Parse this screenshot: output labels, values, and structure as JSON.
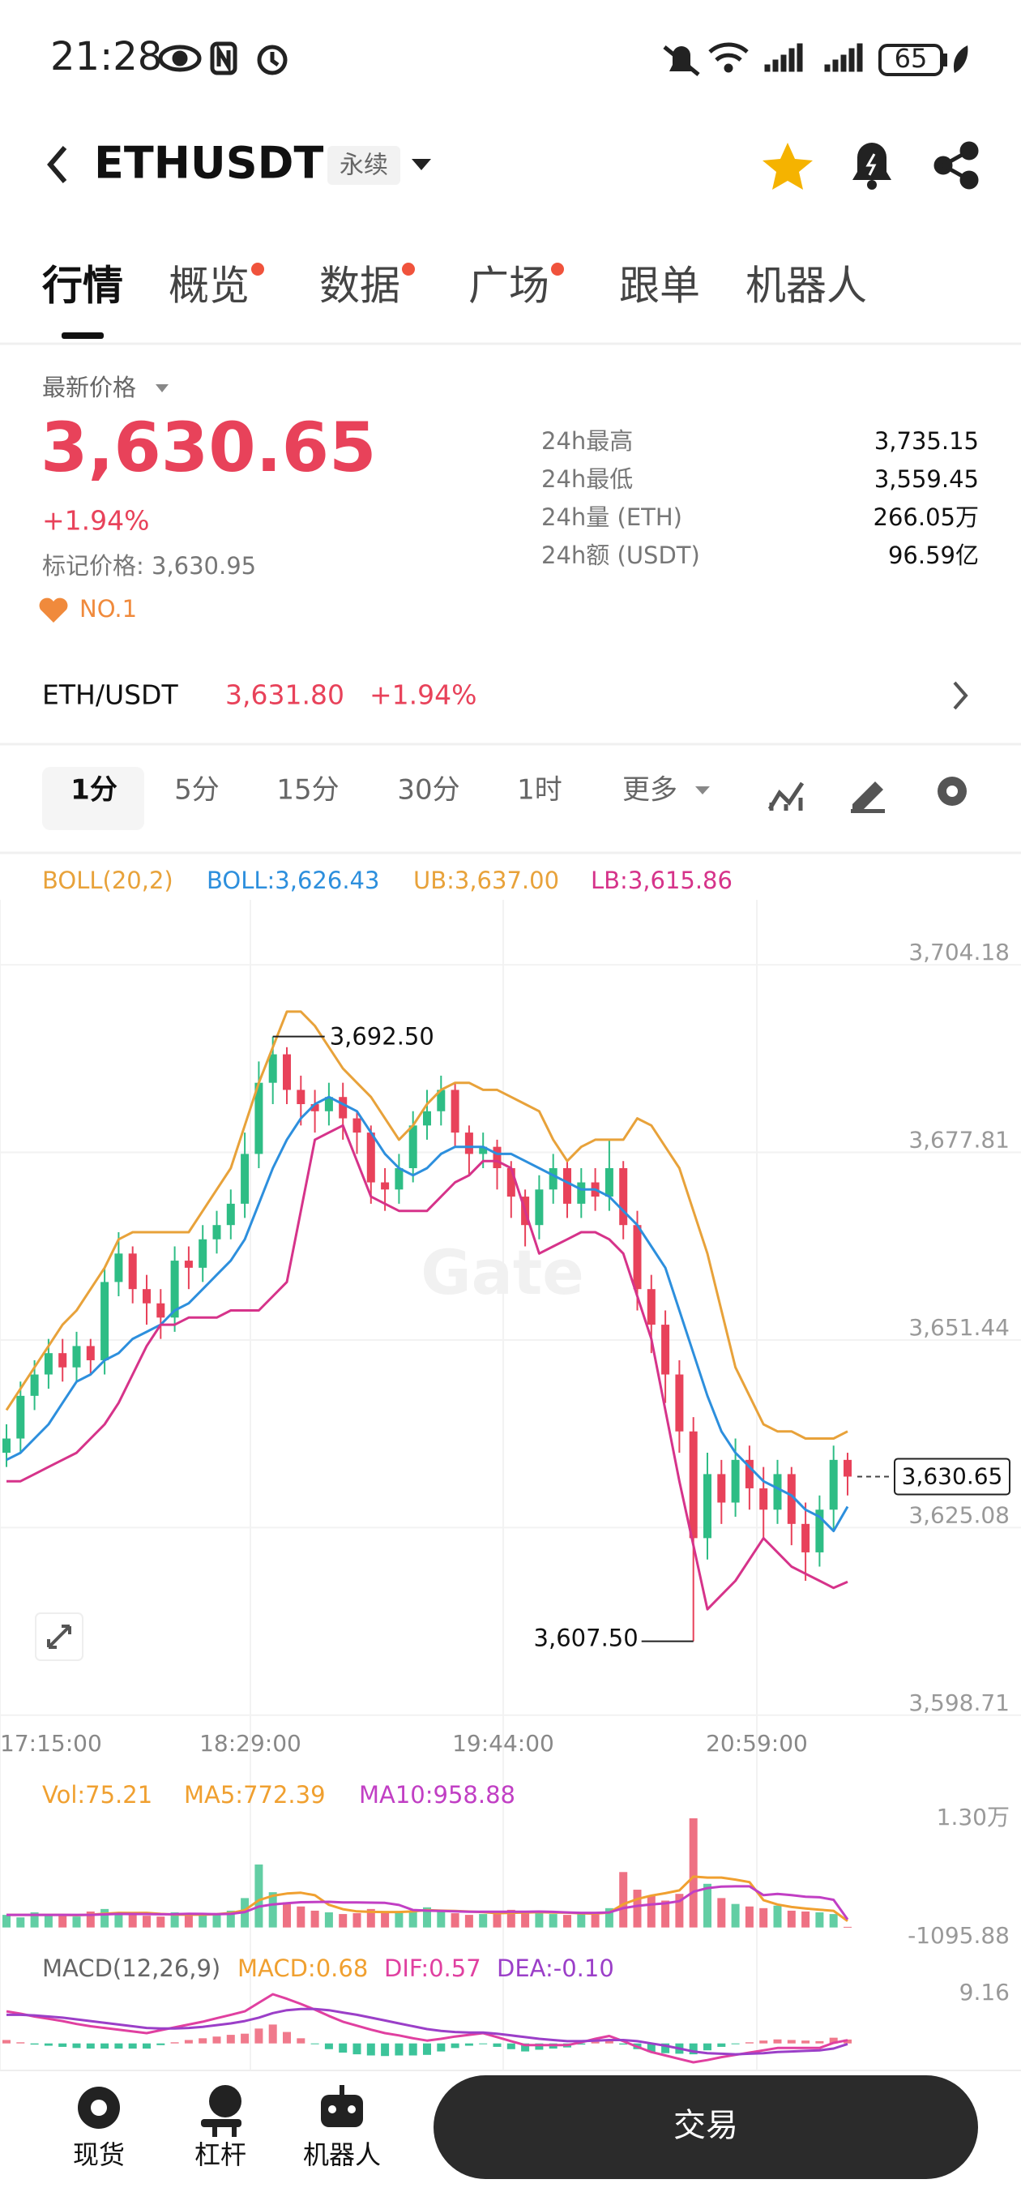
{
  "status_bar": {
    "time": "21:28",
    "battery": "65"
  },
  "header": {
    "symbol": "ETHUSDT",
    "tag": "永续"
  },
  "tabs": {
    "items": [
      {
        "label": "行情",
        "dot": false
      },
      {
        "label": "概览",
        "dot": true
      },
      {
        "label": "数据",
        "dot": true
      },
      {
        "label": "广场",
        "dot": true
      },
      {
        "label": "跟单",
        "dot": false
      },
      {
        "label": "机器人",
        "dot": false
      }
    ],
    "selected": 0
  },
  "price": {
    "label": "最新价格",
    "last": "3,630.65",
    "change": "+1.94%",
    "mark": "标记价格: 3,630.95",
    "rank": "NO.1",
    "stats": [
      {
        "label": "24h最高",
        "value": "3,735.15"
      },
      {
        "label": "24h最低",
        "value": "3,559.45"
      },
      {
        "label": "24h量 (ETH)",
        "value": "266.05万"
      },
      {
        "label": "24h额 (USDT)",
        "value": "96.59亿"
      }
    ]
  },
  "ticker": {
    "pair": "ETH/USDT",
    "price": "3,631.80",
    "change": "+1.94%"
  },
  "intervals": {
    "items": [
      "1分",
      "5分",
      "15分",
      "30分",
      "1时",
      "更多"
    ],
    "selected": 0
  },
  "chart_data": [
    {
      "type": "candlestick",
      "legend_title": "BOLL(20,2)",
      "up_color": "#2ebd85",
      "down_color": "#e8425a",
      "open": [
        3634,
        3636,
        3642,
        3645,
        3648,
        3646,
        3649,
        3647,
        3658,
        3662,
        3657,
        3655,
        3653,
        3661,
        3660,
        3664,
        3666,
        3669,
        3676,
        3686,
        3690,
        3685,
        3683,
        3682,
        3684,
        3681,
        3679,
        3672,
        3671,
        3674,
        3680,
        3682,
        3685,
        3679,
        3676,
        3677,
        3674,
        3670,
        3666,
        3671,
        3674,
        3669,
        3672,
        3670,
        3674,
        3666,
        3657,
        3652,
        3645,
        3637,
        3622,
        3631,
        3627,
        3633,
        3629,
        3626,
        3631,
        3624,
        3620,
        3626,
        3633
      ],
      "high": [
        3638,
        3644,
        3647,
        3650,
        3650,
        3651,
        3650,
        3660,
        3665,
        3663,
        3659,
        3657,
        3663,
        3663,
        3666,
        3668,
        3671,
        3679,
        3689,
        3692.5,
        3691,
        3687,
        3685,
        3686,
        3686,
        3682,
        3680,
        3674,
        3676,
        3682,
        3685,
        3687,
        3686,
        3680,
        3679,
        3678,
        3675,
        3671,
        3673,
        3676,
        3675,
        3674,
        3674,
        3678,
        3675,
        3668,
        3659,
        3654,
        3647,
        3639,
        3634,
        3633,
        3636,
        3635,
        3632,
        3633,
        3632,
        3627,
        3628,
        3635,
        3634
      ],
      "low": [
        3632,
        3634,
        3640,
        3643,
        3644,
        3644,
        3645,
        3645,
        3656,
        3655,
        3652,
        3650,
        3651,
        3657,
        3658,
        3662,
        3664,
        3667,
        3674,
        3683,
        3683,
        3680,
        3679,
        3680,
        3678,
        3676,
        3669,
        3668,
        3669,
        3672,
        3678,
        3680,
        3677,
        3673,
        3674,
        3671,
        3667,
        3663,
        3664,
        3669,
        3667,
        3667,
        3668,
        3668,
        3664,
        3654,
        3648,
        3641,
        3634,
        3607.5,
        3619,
        3624,
        3625,
        3626,
        3622,
        3624,
        3621,
        3616,
        3618,
        3623,
        3628
      ],
      "close": [
        3636,
        3642,
        3645,
        3648,
        3646,
        3649,
        3647,
        3658,
        3662,
        3657,
        3655,
        3653,
        3661,
        3660,
        3664,
        3666,
        3669,
        3676,
        3686,
        3690,
        3685,
        3683,
        3682,
        3684,
        3681,
        3679,
        3672,
        3671,
        3674,
        3680,
        3682,
        3685,
        3679,
        3676,
        3677,
        3674,
        3670,
        3666,
        3671,
        3674,
        3669,
        3672,
        3670,
        3674,
        3666,
        3657,
        3652,
        3645,
        3637,
        3622,
        3631,
        3627,
        3633,
        3629,
        3626,
        3631,
        3624,
        3620,
        3626,
        3633,
        3630.65
      ],
      "series": [
        {
          "name": "BOLL:3,626.43",
          "color": "#2d8fdd",
          "values": [
            3633,
            3634,
            3636,
            3638,
            3641,
            3644,
            3645,
            3647,
            3648,
            3650,
            3651,
            3652,
            3654,
            3655,
            3657,
            3659,
            3661,
            3664,
            3669,
            3674,
            3678,
            3681,
            3683,
            3684,
            3683,
            3682,
            3679,
            3676,
            3674,
            3673,
            3674,
            3676,
            3677,
            3677,
            3677,
            3676,
            3676,
            3675,
            3674,
            3673,
            3672,
            3671,
            3671,
            3670,
            3668,
            3666,
            3663,
            3660,
            3654,
            3648,
            3642,
            3637,
            3634,
            3632,
            3630,
            3629,
            3628,
            3626,
            3625,
            3623,
            3626.43
          ]
        },
        {
          "name": "UB:3,637.00",
          "color": "#e8a23a",
          "values": [
            3640,
            3643,
            3646,
            3649,
            3652,
            3654,
            3657,
            3660,
            3664,
            3665,
            3665,
            3665,
            3665,
            3665,
            3668,
            3671,
            3674,
            3680,
            3686,
            3691,
            3696,
            3696,
            3694,
            3691,
            3688,
            3686,
            3684,
            3681,
            3678,
            3680,
            3683,
            3685,
            3686,
            3686,
            3685,
            3685,
            3684,
            3683,
            3682,
            3678,
            3675,
            3677,
            3678,
            3678,
            3678,
            3681,
            3680,
            3677,
            3674,
            3668,
            3662,
            3654,
            3646,
            3642,
            3638,
            3637,
            3637,
            3636,
            3636,
            3636,
            3637
          ]
        },
        {
          "name": "LB:3,615.86",
          "color": "#d6338a",
          "values": [
            3630,
            3630,
            3631,
            3632,
            3633,
            3634,
            3636,
            3638,
            3641,
            3645,
            3649,
            3652,
            3652,
            3653,
            3653,
            3653,
            3654,
            3654,
            3654,
            3656,
            3658,
            3668,
            3678,
            3679,
            3680,
            3675,
            3670,
            3669,
            3668,
            3668,
            3668,
            3670,
            3672,
            3673,
            3675,
            3675,
            3674,
            3668,
            3662,
            3663,
            3664,
            3665,
            3665,
            3664,
            3662,
            3656,
            3650,
            3640,
            3630,
            3621,
            3612,
            3614,
            3616,
            3619,
            3622,
            3620,
            3618,
            3617,
            3616,
            3615,
            3615.86
          ]
        }
      ],
      "ylim": [
        3596.18,
        3708.18
      ],
      "yticks": [
        {
          "value": 3704.18,
          "label": "3,704.18"
        },
        {
          "value": 3677.81,
          "label": "3,677.81"
        },
        {
          "value": 3651.44,
          "label": "3,651.44"
        },
        {
          "value": 3625.08,
          "label": "3,625.08"
        },
        {
          "value": 3598.71,
          "label": "3,598.71"
        }
      ],
      "grid": true,
      "xlabels": [
        "17:15:00",
        "18:29:00",
        "19:44:00",
        "20:59:00"
      ],
      "max_label": "3,692.50",
      "min_label": "3,607.50",
      "last_label": "3,630.65",
      "watermark": "Gate"
    },
    {
      "type": "bar",
      "name": "Vol:75.21",
      "name_color": "#f0a030",
      "values": [
        1500,
        1200,
        1800,
        1400,
        1600,
        1300,
        1900,
        2200,
        1700,
        1500,
        1400,
        1300,
        1800,
        1600,
        1500,
        1700,
        2000,
        3500,
        7500,
        4200,
        3000,
        2500,
        2000,
        1800,
        1600,
        1700,
        2200,
        1900,
        1800,
        2000,
        2400,
        1900,
        1700,
        1500,
        1600,
        1800,
        2100,
        1900,
        1700,
        1600,
        1500,
        1700,
        1800,
        2300,
        6600,
        4500,
        3800,
        3200,
        4000,
        13000,
        5200,
        3500,
        2800,
        2500,
        2300,
        2600,
        2000,
        1900,
        1800,
        1600,
        75.21
      ],
      "series": [
        {
          "name": "MA5:772.39",
          "color": "#f0a030",
          "values": [
            1500,
            1500,
            1500,
            1500,
            1500,
            1460,
            1520,
            1640,
            1740,
            1720,
            1740,
            1620,
            1540,
            1520,
            1520,
            1580,
            1720,
            2060,
            3240,
            3780,
            4040,
            4140,
            3840,
            2700,
            2180,
            1920,
            1860,
            1840,
            1840,
            1920,
            2060,
            2000,
            1960,
            1900,
            1820,
            1700,
            1740,
            1780,
            1820,
            1780,
            1760,
            1680,
            1660,
            1780,
            2780,
            3380,
            3800,
            4080,
            4420,
            6060,
            5940,
            5940,
            5700,
            5400,
            3260,
            2740,
            2440,
            2260,
            2120,
            1980,
            772.39
          ]
        },
        {
          "name": "MA10:958.88",
          "color": "#c13fc4",
          "values": [
            1500,
            1500,
            1500,
            1500,
            1500,
            1500,
            1500,
            1560,
            1620,
            1610,
            1600,
            1570,
            1580,
            1630,
            1620,
            1580,
            1620,
            1840,
            2490,
            2750,
            2890,
            3010,
            3030,
            3060,
            2980,
            2980,
            2960,
            2930,
            2680,
            2080,
            2000,
            1960,
            1930,
            1880,
            1880,
            1880,
            1870,
            1870,
            1900,
            1860,
            1790,
            1740,
            1740,
            1790,
            2300,
            2570,
            2740,
            2870,
            3130,
            4250,
            4690,
            4870,
            4900,
            4900,
            3850,
            4000,
            3850,
            3650,
            3600,
            3300,
            958.88
          ]
        }
      ],
      "ylim": [
        -1095.88,
        13000
      ],
      "yticks": [
        {
          "value": 13000,
          "label": "1.30万"
        },
        -1095.88
      ],
      "grid": false
    },
    {
      "type": "macd",
      "name": "MACD(12,26,9)",
      "histogram": {
        "name": "MACD:0.68",
        "color": "#f0a030",
        "positive_color": "#f07a8c",
        "negative_color": "#3cc49a",
        "values": [
          0.6,
          0.2,
          -0.2,
          -0.4,
          -0.6,
          -0.8,
          -0.9,
          -0.9,
          -0.9,
          -0.9,
          -0.9,
          -0.3,
          0.2,
          0.6,
          0.9,
          1.2,
          1.5,
          1.7,
          2.6,
          3.3,
          2.0,
          0.9,
          -0.1,
          -1.0,
          -1.6,
          -1.9,
          -2.1,
          -2.2,
          -2.1,
          -2.1,
          -2.0,
          -1.4,
          -0.8,
          -0.4,
          -0.1,
          -0.6,
          -1.0,
          -1.4,
          -1.1,
          -0.9,
          -0.7,
          -0.2,
          0.3,
          0.7,
          -0.2,
          -1.0,
          -1.5,
          -1.7,
          -1.8,
          -1.9,
          -1.2,
          -0.6,
          -0.1,
          0.2,
          0.5,
          0.7,
          0.6,
          0.5,
          0.4,
          1.0,
          0.68
        ]
      },
      "series": [
        {
          "name": "DIF:0.57",
          "color": "#e040a0",
          "values": [
            5.6,
            5.2,
            4.7,
            4.3,
            3.9,
            3.4,
            3.0,
            2.7,
            2.4,
            2.1,
            1.8,
            2.3,
            2.8,
            3.3,
            3.8,
            4.4,
            5.0,
            5.6,
            7.1,
            8.6,
            7.8,
            6.9,
            5.9,
            4.8,
            3.8,
            3.1,
            2.4,
            1.8,
            1.4,
            0.9,
            0.5,
            0.8,
            1.2,
            1.5,
            1.8,
            1.1,
            0.4,
            -0.3,
            -0.3,
            -0.3,
            -0.3,
            0.2,
            0.8,
            1.3,
            0.4,
            -0.6,
            -1.5,
            -2.1,
            -2.7,
            -3.3,
            -2.9,
            -2.4,
            -2.0,
            -1.6,
            -1.2,
            -0.8,
            -0.8,
            -0.8,
            -0.8,
            0.1,
            0.57
          ]
        },
        {
          "name": "DEA:-0.10",
          "color": "#9b3fc8",
          "values": [
            5.0,
            5.0,
            4.9,
            4.7,
            4.5,
            4.2,
            3.9,
            3.6,
            3.3,
            3.0,
            2.7,
            2.6,
            2.6,
            2.7,
            2.9,
            3.2,
            3.5,
            3.9,
            4.5,
            5.3,
            5.8,
            6.0,
            6.0,
            5.8,
            5.4,
            5.0,
            4.5,
            4.0,
            3.5,
            3.0,
            2.5,
            2.2,
            2.0,
            1.9,
            1.9,
            1.7,
            1.4,
            1.1,
            0.8,
            0.6,
            0.4,
            0.4,
            0.5,
            0.6,
            0.6,
            0.4,
            0.0,
            -0.4,
            -0.9,
            -1.4,
            -1.7,
            -1.8,
            -1.9,
            -1.8,
            -1.7,
            -1.5,
            -1.4,
            -1.3,
            -1.2,
            -0.9,
            -0.1
          ]
        }
      ],
      "ylim": [
        -5,
        9.16
      ],
      "yticks": [
        9.16
      ],
      "grid": false
    }
  ],
  "bottom_nav": {
    "items": [
      "现货",
      "杠杆",
      "机器人"
    ],
    "trade": "交易"
  }
}
